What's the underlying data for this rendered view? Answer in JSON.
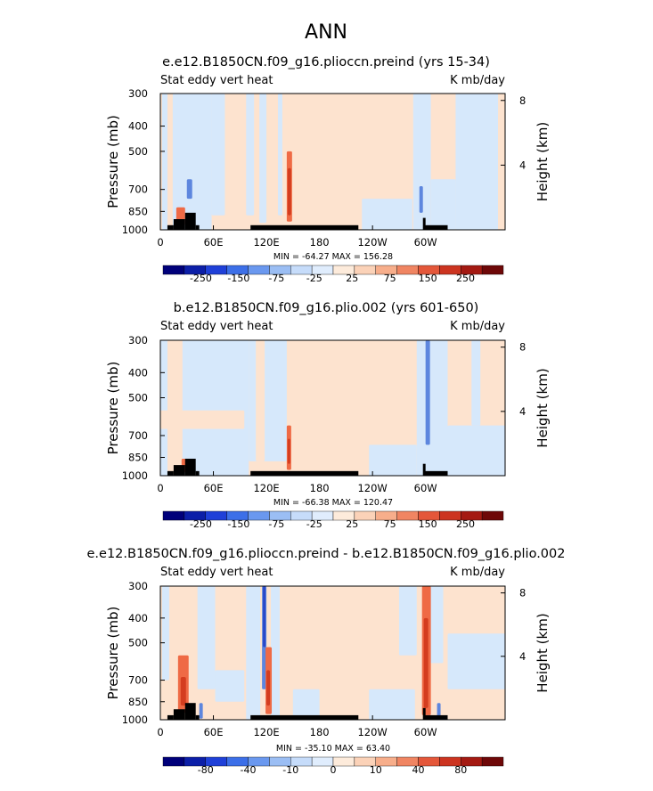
{
  "figure_title": "ANN",
  "colors": {
    "pale_blue": "#d6e8fb",
    "pale_orange": "#fde3cf",
    "warm": "#ef6a45",
    "deep_warm": "#d43d1f",
    "cool": "#5d86de",
    "deep_cool": "#2a48c8",
    "land": "#000000"
  },
  "chart_data": [
    {
      "type": "heatmap",
      "title": "e.e12.B1850CN.f09_g16.plioccn.preind (yrs 15-34)",
      "left_label": "Stat eddy vert heat",
      "right_label": "K mb/day",
      "ylabel": "Pressure (mb)",
      "ylabel_right": "Height (km)",
      "x_ticks": [
        "0",
        "60E",
        "120E",
        "180",
        "120W",
        "60W"
      ],
      "x_tick_values": [
        0,
        60,
        120,
        180,
        240,
        300
      ],
      "xlim": [
        0,
        390
      ],
      "y_ticks": [
        "300",
        "400",
        "500",
        "700",
        "850",
        "1000"
      ],
      "y_tick_values": [
        300,
        400,
        500,
        700,
        850,
        1000
      ],
      "ylim": [
        1000,
        300
      ],
      "height_ticks": [
        "4",
        "8"
      ],
      "height_tick_values": [
        4,
        8
      ],
      "stats": "MIN = -64.27   MAX = 156.28",
      "colorbar_labels": [
        "-250",
        "-150",
        "-75",
        "-25",
        "25",
        "75",
        "150",
        "250"
      ],
      "colorbar_colors": [
        "#00007a",
        "#0c1fa8",
        "#1f40d8",
        "#3c6fe8",
        "#6a98ef",
        "#9bbef4",
        "#c6dcfa",
        "#e0edfd",
        "#fdebdb",
        "#fbd2b8",
        "#f7ae8b",
        "#f08562",
        "#e4573a",
        "#cc3420",
        "#a41a12",
        "#6e0808"
      ],
      "background": "pale_orange",
      "features": [
        {
          "lon": 2,
          "lon2": 8,
          "p_top": 300,
          "p_bot": 1000,
          "level": "pale_blue"
        },
        {
          "lon": 14,
          "lon2": 58,
          "p_top": 300,
          "p_bot": 1000,
          "level": "pale_blue"
        },
        {
          "lon": 58,
          "lon2": 73,
          "p_top": 300,
          "p_bot": 880,
          "level": "pale_blue"
        },
        {
          "lon": 97,
          "lon2": 106,
          "p_top": 300,
          "p_bot": 880,
          "level": "pale_blue"
        },
        {
          "lon": 112,
          "lon2": 120,
          "p_top": 300,
          "p_bot": 940,
          "level": "pale_blue"
        },
        {
          "lon": 133,
          "lon2": 138,
          "p_top": 300,
          "p_bot": 880,
          "level": "pale_blue"
        },
        {
          "lon": 228,
          "lon2": 285,
          "p_top": 760,
          "p_bot": 1000,
          "level": "pale_blue"
        },
        {
          "lon": 286,
          "lon2": 306,
          "p_top": 300,
          "p_bot": 1000,
          "level": "pale_blue"
        },
        {
          "lon": 306,
          "lon2": 334,
          "p_top": 640,
          "p_bot": 1000,
          "level": "pale_blue"
        },
        {
          "lon": 334,
          "lon2": 382,
          "p_top": 300,
          "p_bot": 1000,
          "level": "pale_blue"
        },
        {
          "lon": 382,
          "lon2": 390,
          "p_top": 360,
          "p_bot": 1000,
          "level": "pale_orange"
        },
        {
          "lon": 30,
          "lon2": 36,
          "p_top": 640,
          "p_bot": 760,
          "level": "cool"
        },
        {
          "lon": 18,
          "lon2": 28,
          "p_top": 820,
          "p_bot": 960,
          "level": "warm"
        },
        {
          "lon": 143,
          "lon2": 149,
          "p_top": 500,
          "p_bot": 930,
          "level": "warm"
        },
        {
          "lon": 144,
          "lon2": 148,
          "p_top": 580,
          "p_bot": 880,
          "level": "deep_warm"
        },
        {
          "lon": 293,
          "lon2": 297,
          "p_top": 680,
          "p_bot": 860,
          "level": "cool"
        }
      ],
      "land": [
        {
          "lon": 8,
          "lon2": 15,
          "p_top": 960
        },
        {
          "lon": 15,
          "lon2": 28,
          "p_top": 910
        },
        {
          "lon": 28,
          "lon2": 40,
          "p_top": 860
        },
        {
          "lon": 40,
          "lon2": 44,
          "p_top": 960
        },
        {
          "lon": 102,
          "lon2": 224,
          "p_top": 960
        },
        {
          "lon": 297,
          "lon2": 300,
          "p_top": 900
        },
        {
          "lon": 300,
          "lon2": 325,
          "p_top": 960
        }
      ]
    },
    {
      "type": "heatmap",
      "title": "b.e12.B1850CN.f09_g16.plio.002 (yrs 601-650)",
      "left_label": "Stat eddy vert heat",
      "right_label": "K mb/day",
      "ylabel": "Pressure (mb)",
      "ylabel_right": "Height (km)",
      "x_ticks": [
        "0",
        "60E",
        "120E",
        "180",
        "120W",
        "60W"
      ],
      "x_tick_values": [
        0,
        60,
        120,
        180,
        240,
        300
      ],
      "xlim": [
        0,
        390
      ],
      "y_ticks": [
        "300",
        "400",
        "500",
        "700",
        "850",
        "1000"
      ],
      "y_tick_values": [
        300,
        400,
        500,
        700,
        850,
        1000
      ],
      "ylim": [
        1000,
        300
      ],
      "height_ticks": [
        "4",
        "8"
      ],
      "height_tick_values": [
        4,
        8
      ],
      "stats": "MIN = -66.38   MAX = 120.47",
      "colorbar_labels": [
        "-250",
        "-150",
        "-75",
        "-25",
        "25",
        "75",
        "150",
        "250"
      ],
      "colorbar_colors": [
        "#00007a",
        "#0c1fa8",
        "#1f40d8",
        "#3c6fe8",
        "#6a98ef",
        "#9bbef4",
        "#c6dcfa",
        "#e0edfd",
        "#fdebdb",
        "#fbd2b8",
        "#f7ae8b",
        "#f08562",
        "#e4573a",
        "#cc3420",
        "#a41a12",
        "#6e0808"
      ],
      "background": "pale_orange",
      "features": [
        {
          "lon": 0,
          "lon2": 100,
          "p_top": 300,
          "p_bot": 1000,
          "level": "pale_blue"
        },
        {
          "lon": 100,
          "lon2": 143,
          "p_top": 300,
          "p_bot": 880,
          "level": "pale_blue"
        },
        {
          "lon": 8,
          "lon2": 25,
          "p_top": 300,
          "p_bot": 1000,
          "level": "pale_orange"
        },
        {
          "lon": 0,
          "lon2": 95,
          "p_top": 560,
          "p_bot": 660,
          "level": "pale_orange"
        },
        {
          "lon": 108,
          "lon2": 118,
          "p_top": 300,
          "p_bot": 880,
          "level": "pale_orange"
        },
        {
          "lon": 236,
          "lon2": 290,
          "p_top": 760,
          "p_bot": 1000,
          "level": "pale_blue"
        },
        {
          "lon": 290,
          "lon2": 325,
          "p_top": 300,
          "p_bot": 1000,
          "level": "pale_blue"
        },
        {
          "lon": 325,
          "lon2": 390,
          "p_top": 640,
          "p_bot": 1000,
          "level": "pale_blue"
        },
        {
          "lon": 352,
          "lon2": 362,
          "p_top": 300,
          "p_bot": 640,
          "level": "pale_blue"
        },
        {
          "lon": 300,
          "lon2": 305,
          "p_top": 300,
          "p_bot": 760,
          "level": "cool"
        },
        {
          "lon": 24,
          "lon2": 30,
          "p_top": 860,
          "p_bot": 970,
          "level": "warm"
        },
        {
          "lon": 143,
          "lon2": 148,
          "p_top": 640,
          "p_bot": 950,
          "level": "warm"
        },
        {
          "lon": 144,
          "lon2": 147,
          "p_top": 720,
          "p_bot": 900,
          "level": "deep_warm"
        }
      ],
      "land": [
        {
          "lon": 8,
          "lon2": 15,
          "p_top": 960
        },
        {
          "lon": 15,
          "lon2": 28,
          "p_top": 910
        },
        {
          "lon": 28,
          "lon2": 40,
          "p_top": 860
        },
        {
          "lon": 40,
          "lon2": 44,
          "p_top": 960
        },
        {
          "lon": 102,
          "lon2": 224,
          "p_top": 960
        },
        {
          "lon": 297,
          "lon2": 300,
          "p_top": 900
        },
        {
          "lon": 300,
          "lon2": 325,
          "p_top": 960
        }
      ]
    },
    {
      "type": "heatmap",
      "title": "e.e12.B1850CN.f09_g16.plioccn.preind - b.e12.B1850CN.f09_g16.plio.002",
      "left_label": "Stat eddy vert heat",
      "right_label": "K mb/day",
      "ylabel": "Pressure (mb)",
      "ylabel_right": "Height (km)",
      "x_ticks": [
        "0",
        "60E",
        "120E",
        "180",
        "120W",
        "60W"
      ],
      "x_tick_values": [
        0,
        60,
        120,
        180,
        240,
        300
      ],
      "xlim": [
        0,
        390
      ],
      "y_ticks": [
        "300",
        "400",
        "500",
        "700",
        "850",
        "1000"
      ],
      "y_tick_values": [
        300,
        400,
        500,
        700,
        850,
        1000
      ],
      "ylim": [
        1000,
        300
      ],
      "height_ticks": [
        "4",
        "8"
      ],
      "height_tick_values": [
        4,
        8
      ],
      "stats": "MIN = -35.10   MAX = 63.40",
      "colorbar_labels": [
        "-80",
        "-40",
        "-10",
        "0",
        "10",
        "40",
        "80"
      ],
      "colorbar_colors": [
        "#00007a",
        "#0c1fa8",
        "#1f40d8",
        "#3c6fe8",
        "#6a98ef",
        "#9bbef4",
        "#c6dcfa",
        "#e0edfd",
        "#fdebdb",
        "#fbd2b8",
        "#f7ae8b",
        "#f08562",
        "#e4573a",
        "#cc3420",
        "#a41a12",
        "#6e0808"
      ],
      "background": "pale_orange",
      "features": [
        {
          "lon": 2,
          "lon2": 10,
          "p_top": 300,
          "p_bot": 700,
          "level": "pale_blue"
        },
        {
          "lon": 42,
          "lon2": 62,
          "p_top": 300,
          "p_bot": 760,
          "level": "pale_blue"
        },
        {
          "lon": 62,
          "lon2": 95,
          "p_top": 640,
          "p_bot": 850,
          "level": "pale_blue"
        },
        {
          "lon": 97,
          "lon2": 113,
          "p_top": 300,
          "p_bot": 1000,
          "level": "pale_blue"
        },
        {
          "lon": 125,
          "lon2": 135,
          "p_top": 300,
          "p_bot": 1000,
          "level": "pale_blue"
        },
        {
          "lon": 150,
          "lon2": 180,
          "p_top": 760,
          "p_bot": 1000,
          "level": "pale_blue"
        },
        {
          "lon": 236,
          "lon2": 288,
          "p_top": 760,
          "p_bot": 1000,
          "level": "pale_blue"
        },
        {
          "lon": 270,
          "lon2": 290,
          "p_top": 300,
          "p_bot": 560,
          "level": "pale_blue"
        },
        {
          "lon": 298,
          "lon2": 320,
          "p_top": 300,
          "p_bot": 600,
          "level": "pale_blue"
        },
        {
          "lon": 325,
          "lon2": 390,
          "p_top": 460,
          "p_bot": 760,
          "level": "pale_blue"
        },
        {
          "lon": 115,
          "lon2": 120,
          "p_top": 300,
          "p_bot": 760,
          "level": "cool"
        },
        {
          "lon": 116,
          "lon2": 119,
          "p_top": 300,
          "p_bot": 520,
          "level": "deep_cool"
        },
        {
          "lon": 44,
          "lon2": 48,
          "p_top": 860,
          "p_bot": 990,
          "level": "cool"
        },
        {
          "lon": 313,
          "lon2": 317,
          "p_top": 860,
          "p_bot": 990,
          "level": "cool"
        },
        {
          "lon": 20,
          "lon2": 32,
          "p_top": 560,
          "p_bot": 940,
          "level": "warm"
        },
        {
          "lon": 23,
          "lon2": 29,
          "p_top": 680,
          "p_bot": 880,
          "level": "deep_warm"
        },
        {
          "lon": 119,
          "lon2": 126,
          "p_top": 520,
          "p_bot": 950,
          "level": "warm"
        },
        {
          "lon": 120,
          "lon2": 124,
          "p_top": 640,
          "p_bot": 880,
          "level": "deep_warm"
        },
        {
          "lon": 296,
          "lon2": 306,
          "p_top": 300,
          "p_bot": 960,
          "level": "warm"
        },
        {
          "lon": 298,
          "lon2": 303,
          "p_top": 400,
          "p_bot": 900,
          "level": "deep_warm"
        }
      ],
      "land": [
        {
          "lon": 8,
          "lon2": 15,
          "p_top": 960
        },
        {
          "lon": 15,
          "lon2": 28,
          "p_top": 910
        },
        {
          "lon": 28,
          "lon2": 40,
          "p_top": 860
        },
        {
          "lon": 40,
          "lon2": 44,
          "p_top": 960
        },
        {
          "lon": 102,
          "lon2": 224,
          "p_top": 960
        },
        {
          "lon": 297,
          "lon2": 300,
          "p_top": 900
        },
        {
          "lon": 300,
          "lon2": 325,
          "p_top": 960
        }
      ]
    }
  ]
}
